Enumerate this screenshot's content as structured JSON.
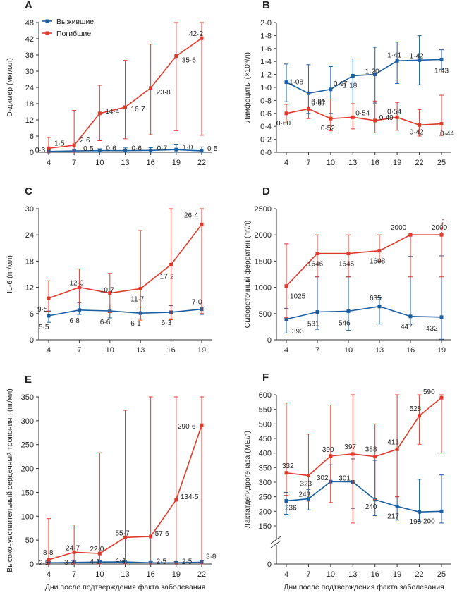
{
  "colors": {
    "survivors": "#1b5fa3",
    "deaths": "#e0392b",
    "axis": "#333333"
  },
  "legend": {
    "survivors": "Выжившие",
    "deaths": "Погибшие"
  },
  "common_xlabel": "Дни после подтверждения факта заболевания",
  "chart_data": [
    {
      "letter": "A",
      "type": "line",
      "ylabel": "D-димер (мкг/мл)",
      "x": [
        4,
        7,
        10,
        13,
        16,
        19,
        22
      ],
      "xticks": [
        "4",
        "7",
        "10",
        "13",
        "16",
        "19",
        "22"
      ],
      "yticks": [
        "0",
        "6",
        "12",
        "18",
        "24",
        "30",
        "36",
        "42",
        "48"
      ],
      "ylim": [
        0,
        48
      ],
      "series": [
        {
          "name": "Выжившие",
          "values": [
            0.3,
            0.5,
            0.6,
            0.6,
            0.7,
            1.0,
            0.5
          ],
          "labels": [
            "0·3",
            "0·5",
            "0·6",
            "0·6",
            "0·7",
            "1·0",
            "0·5"
          ],
          "err_high": [
            0.8,
            1.0,
            1.3,
            1.6,
            1.7,
            3.0,
            2.0
          ],
          "err_low": [
            0,
            0,
            0,
            0,
            0,
            0,
            0
          ]
        },
        {
          "name": "Погибшие",
          "values": [
            1.5,
            2.6,
            14.4,
            16.7,
            23.8,
            35.6,
            42.2
          ],
          "labels": [
            "1·5",
            "2·6",
            "14·4",
            "16·7",
            "23·8",
            "35·6",
            "42·2"
          ],
          "err_high": [
            5.5,
            15.5,
            24.8,
            34,
            40,
            48,
            48
          ],
          "err_low": [
            0,
            0,
            4.3,
            5,
            6.5,
            8,
            6.3
          ]
        }
      ]
    },
    {
      "letter": "B",
      "type": "line",
      "ylabel": "Лимфоциты (×10⁹/л)",
      "x": [
        4,
        7,
        10,
        13,
        16,
        19,
        22,
        25
      ],
      "xticks": [
        "4",
        "7",
        "10",
        "13",
        "16",
        "19",
        "22",
        "25"
      ],
      "yticks": [
        "0·0",
        "0·2",
        "0·4",
        "0·6",
        "0·8",
        "1·0",
        "1·2",
        "1·4",
        "1·6",
        "1·8",
        "2·0"
      ],
      "ylim": [
        0,
        2
      ],
      "series": [
        {
          "name": "Выжившие",
          "values": [
            1.08,
            0.91,
            0.97,
            1.18,
            1.2,
            1.41,
            1.42,
            1.43
          ],
          "labels": [
            "1·08",
            "0·91",
            "0·97",
            "1·18",
            "1·20",
            "1·41",
            "1·42",
            "1·43"
          ],
          "err_high": [
            1.36,
            1.35,
            1.32,
            1.44,
            1.62,
            1.7,
            1.8,
            1.58
          ],
          "err_low": [
            0.78,
            0.6,
            0.6,
            0.75,
            0.76,
            1.06,
            1.04,
            1.28
          ]
        },
        {
          "name": "Погибшие",
          "values": [
            0.6,
            0.67,
            0.52,
            0.54,
            0.49,
            0.54,
            0.42,
            0.44
          ],
          "labels": [
            "0·60",
            "0·67",
            "0·52",
            "0·54",
            "0·49",
            "0·54",
            "0·42",
            "0·44"
          ],
          "err_high": [
            0.74,
            0.9,
            0.82,
            0.75,
            0.79,
            0.77,
            0.66,
            0.88
          ],
          "err_low": [
            0.45,
            0.52,
            0.33,
            0.36,
            0.3,
            0.34,
            0.25,
            0.26
          ]
        }
      ]
    },
    {
      "letter": "C",
      "type": "line",
      "ylabel": "IL-6 (пг/мл)",
      "x": [
        4,
        7,
        10,
        13,
        16,
        19
      ],
      "xticks": [
        "4",
        "7",
        "10",
        "13",
        "16",
        "19"
      ],
      "yticks": [
        "0",
        "6",
        "12",
        "18",
        "24",
        "30"
      ],
      "ylim": [
        0,
        30
      ],
      "series": [
        {
          "name": "Выжившие",
          "values": [
            5.5,
            6.8,
            6.6,
            6.1,
            6.3,
            7.0
          ],
          "labels": [
            "5·5",
            "6·8",
            "6·6",
            "6·1",
            "6·3",
            "7·0"
          ],
          "err_high": [
            6.6,
            8.5,
            8.0,
            7.5,
            7.8,
            8.0
          ],
          "err_low": [
            4.0,
            5.8,
            5.0,
            4.8,
            4.8,
            5.8
          ]
        },
        {
          "name": "Погибшие",
          "values": [
            9.5,
            12.0,
            10.7,
            11.7,
            17.2,
            26.4
          ],
          "labels": [
            "9·5",
            "12·0",
            "10·7",
            "11·7",
            "17·2",
            "26·4"
          ],
          "err_high": [
            13.5,
            16.2,
            15.2,
            25,
            30,
            30
          ],
          "err_low": [
            6.5,
            8.0,
            6.2,
            4.5,
            4.6,
            6.0
          ]
        }
      ]
    },
    {
      "letter": "D",
      "type": "line",
      "ylabel": "Сывороточный ферритин (пг/л)",
      "x": [
        4,
        7,
        10,
        13,
        16,
        19
      ],
      "xticks": [
        "4",
        "7",
        "10",
        "13",
        "16",
        "19"
      ],
      "yticks": [
        "0",
        "500",
        "1000",
        "1500",
        "2000",
        "2500"
      ],
      "ylim": [
        0,
        2500
      ],
      "series": [
        {
          "name": "Выжившие",
          "values": [
            393,
            531,
            546,
            635,
            447,
            432
          ],
          "labels": [
            "393",
            "531",
            "546",
            "635",
            "447",
            "432"
          ],
          "err_high": [
            600,
            1200,
            1200,
            800,
            1590,
            1600
          ],
          "err_low": [
            130,
            200,
            180,
            300,
            300,
            10
          ]
        },
        {
          "name": "Погибшие",
          "values": [
            1025,
            1646,
            1645,
            1698,
            2000,
            2000
          ],
          "labels": [
            "1025",
            "1646",
            "1645",
            "1698",
            "2000",
            "2000"
          ],
          "err_high": [
            1830,
            2000,
            2000,
            2000,
            2000,
            2000
          ],
          "err_low": [
            420,
            1200,
            1200,
            1500,
            1200,
            1200
          ]
        }
      ]
    },
    {
      "letter": "E",
      "type": "line",
      "ylabel": "Высокочувствительный сердечный тропонин I (пг/мл)",
      "x": [
        4,
        7,
        10,
        13,
        16,
        19,
        22
      ],
      "xticks": [
        "4",
        "7",
        "10",
        "13",
        "16",
        "19",
        "22"
      ],
      "yticks": [
        "0",
        "50",
        "100",
        "150",
        "200",
        "250",
        "300",
        "350"
      ],
      "ylim": [
        0,
        350
      ],
      "series": [
        {
          "name": "Выжившие",
          "values": [
            2.5,
            3.3,
            4.1,
            4.4,
            2.5,
            2.5,
            3.8
          ],
          "labels": [
            "2·5",
            "3·3",
            "4·1",
            "4·4",
            "2·5",
            "2·5",
            "3·8"
          ],
          "err_high": [
            5,
            6,
            7,
            8,
            5,
            5,
            7
          ],
          "err_low": [
            0,
            0,
            0,
            0,
            0,
            0,
            0
          ]
        },
        {
          "name": "Погибшие",
          "values": [
            8.8,
            24.7,
            22.0,
            55.7,
            57.6,
            134.5,
            290.6
          ],
          "labels": [
            "8·8",
            "24·7",
            "22·0",
            "55·7",
            "57·6",
            "134·5",
            "290·6"
          ],
          "err_high": [
            95,
            82,
            233,
            322,
            350,
            350,
            350
          ],
          "err_low": [
            0,
            0,
            0,
            0,
            0,
            0,
            0
          ]
        }
      ]
    },
    {
      "letter": "F",
      "type": "line",
      "ylabel": "Лактатдегидрогеназа (МЕ/л)",
      "x": [
        4,
        7,
        10,
        13,
        16,
        19,
        22,
        25
      ],
      "xticks": [
        "4",
        "7",
        "10",
        "13",
        "16",
        "19",
        "22",
        "25"
      ],
      "yticks": [
        "0",
        "150",
        "200",
        "250",
        "300",
        "350",
        "400",
        "450",
        "500",
        "550",
        "600"
      ],
      "ylim": [
        150,
        600
      ],
      "axis_break": true,
      "series": [
        {
          "name": "Выжившие",
          "values": [
            236,
            243,
            302,
            301,
            240,
            217,
            198,
            200
          ],
          "labels": [
            "236",
            "243",
            "302",
            "301",
            "240",
            "217",
            "198",
            "200"
          ],
          "err_high": [
            265,
            275,
            360,
            380,
            375,
            250,
            310,
            325
          ],
          "err_low": [
            190,
            205,
            230,
            210,
            185,
            170,
            165,
            160
          ]
        },
        {
          "name": "Погибшие",
          "values": [
            332,
            323,
            390,
            397,
            388,
            413,
            528,
            590
          ],
          "labels": [
            "332",
            "323",
            "390",
            "397",
            "388",
            "413",
            "528",
            "590"
          ],
          "err_high": [
            572,
            465,
            565,
            600,
            500,
            600,
            600,
            600
          ],
          "err_low": [
            255,
            235,
            230,
            160,
            240,
            250,
            430,
            400
          ]
        }
      ]
    }
  ]
}
